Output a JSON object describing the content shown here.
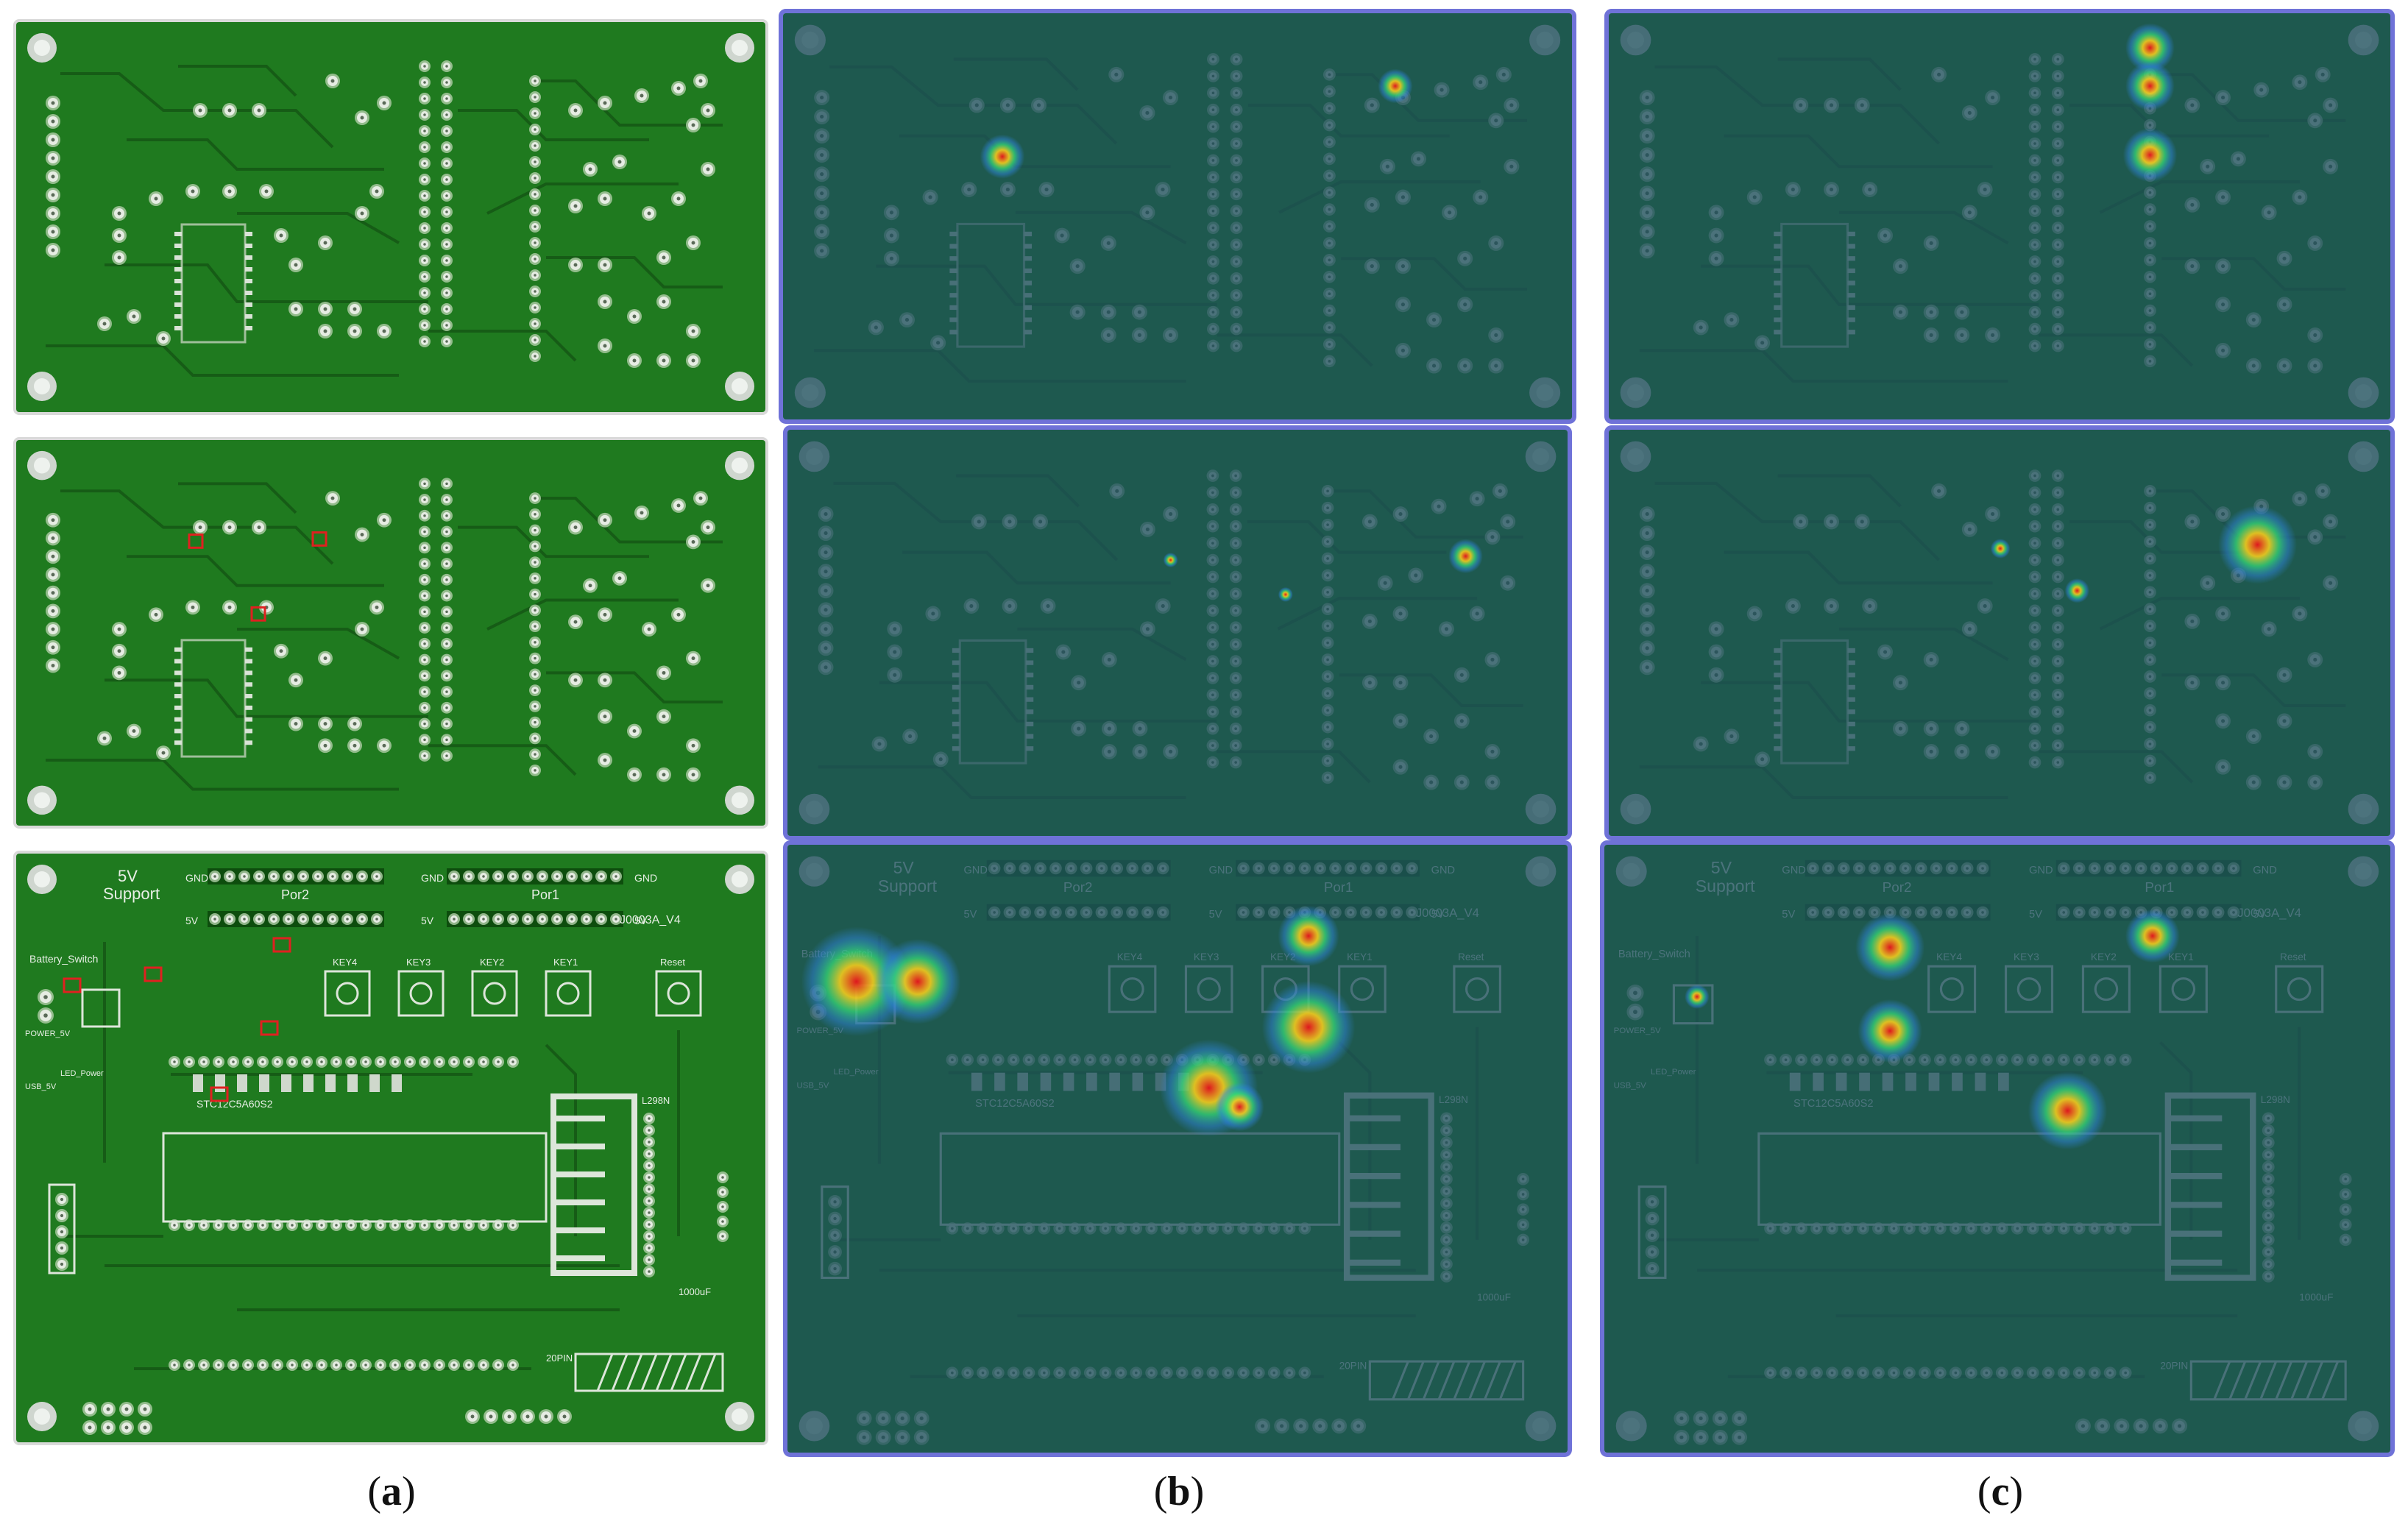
{
  "figure": {
    "captions": [
      {
        "open": "(",
        "letter": "a",
        "close": ")"
      },
      {
        "open": "(",
        "letter": "b",
        "close": ")"
      },
      {
        "open": "(",
        "letter": "c",
        "close": ")"
      }
    ],
    "board_silkscreen": {
      "support": "5V\nSupport",
      "switch": "Battery_Switch",
      "port1": "Por1",
      "port2": "Por2",
      "gnd": "GND",
      "v5": "5V",
      "model": "J0003A_V4",
      "reset": "Reset",
      "keys": [
        "KEY4",
        "KEY3",
        "KEY2",
        "KEY1"
      ],
      "chip": "STC12C5A60S2",
      "regulator": "L298N",
      "cap": "1000uF",
      "header": "20PIN",
      "power": "POWER_5V",
      "usb": "USB_5V",
      "led": "LED_Power"
    },
    "colors": {
      "pcb_green": "#1f7a1f",
      "pcb_green_dark": "#165c16",
      "heat_base": "#1f4f5e",
      "heat_border": "#6f72d8",
      "defect_box": "#e02020"
    }
  }
}
